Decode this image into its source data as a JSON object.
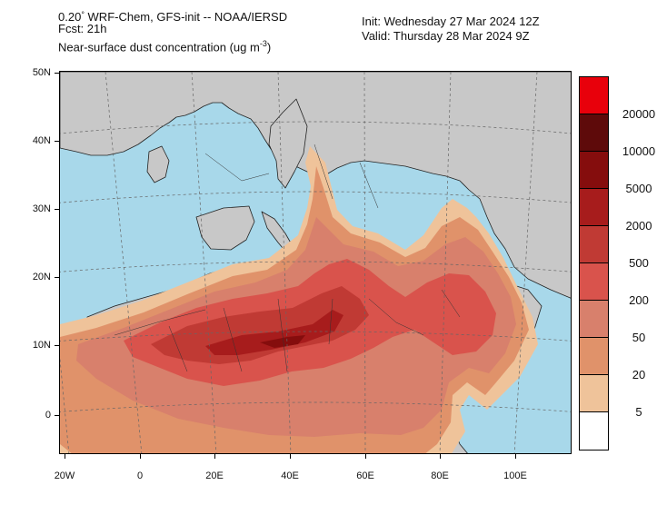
{
  "header": {
    "line1_prefix": "0.20",
    "line1_deg": "°",
    "line1_rest": " WRF-Chem, GFS-init -- NOAA/IERSD",
    "line2": "Fcst: 21h",
    "line3_prefix": "Near-surface dust concentration (ug m",
    "line3_exp": "-3",
    "line3_suffix": ")",
    "init": "Init: Wednesday 27 Mar 2024  12Z",
    "valid": "Valid: Thursday 28 Mar 2024  9Z"
  },
  "map": {
    "projection": "Lambert conformal",
    "ocean_color": "#a8d8ea",
    "land_color": "#c8c8c8",
    "lat_labels": [
      "50N",
      "40N",
      "30N",
      "20N",
      "10N",
      "0"
    ],
    "lon_labels": [
      "20W",
      "0",
      "20E",
      "40E",
      "60E",
      "80E",
      "100E"
    ]
  },
  "colorbar": {
    "levels": [
      "20000",
      "10000",
      "5000",
      "2000",
      "500",
      "200",
      "50",
      "20",
      "5"
    ],
    "colors": [
      "#e8000b",
      "#5e0a0a",
      "#850d0d",
      "#a71c1c",
      "#c03a34",
      "#d9534c",
      "#d8806c",
      "#e0926a",
      "#efc39a",
      "#ffffff"
    ]
  }
}
